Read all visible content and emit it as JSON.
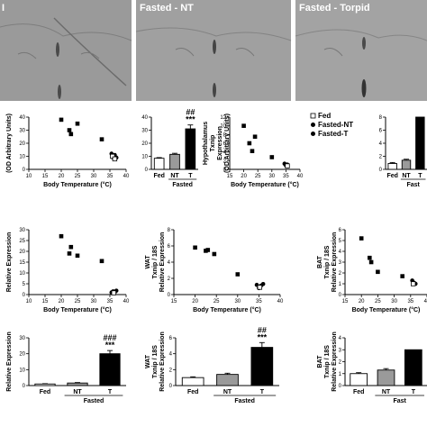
{
  "panel_headers": [
    "I",
    "Fasted - NT",
    "Fasted - Torpid"
  ],
  "legend": [
    {
      "label": "Fed",
      "marker": "open-square"
    },
    {
      "label": "Fasted-NT",
      "marker": "filled-circle"
    },
    {
      "label": "Fasted-T",
      "marker": "filled-circle"
    }
  ],
  "colors": {
    "fed": "#ffffff",
    "fasted_nt": "#9a9a9a",
    "fasted_t": "#000000",
    "micrograph_bg": "#9c9c9c"
  },
  "chart_data": [
    {
      "id": "r1c1",
      "type": "scatter",
      "ylabel": "(OD Arbitrary Units)",
      "xlabel": "Body Temperature (°C)",
      "xlim": [
        10,
        40
      ],
      "xticks": [
        10,
        15,
        20,
        25,
        30,
        35,
        40
      ],
      "ylim": [
        0,
        40
      ],
      "yticks": [
        0,
        10,
        20,
        30,
        40
      ],
      "points": [
        {
          "x": 20,
          "y": 38,
          "m": "s"
        },
        {
          "x": 22.5,
          "y": 30,
          "m": "s"
        },
        {
          "x": 23,
          "y": 27,
          "m": "s"
        },
        {
          "x": 25,
          "y": 35,
          "m": "s"
        },
        {
          "x": 32.5,
          "y": 23,
          "m": "s"
        },
        {
          "x": 35.5,
          "y": 12,
          "m": "c"
        },
        {
          "x": 36,
          "y": 9,
          "m": "c"
        },
        {
          "x": 36.5,
          "y": 11,
          "m": "c"
        },
        {
          "x": 37,
          "y": 9,
          "m": "c"
        },
        {
          "x": 35.8,
          "y": 10,
          "m": "o"
        },
        {
          "x": 36.5,
          "y": 8,
          "m": "o"
        }
      ]
    },
    {
      "id": "r1c2",
      "type": "bar",
      "categories": [
        "Fed",
        "NT",
        "T"
      ],
      "group_label": "Fasted",
      "values": [
        8.5,
        11.5,
        31
      ],
      "errors": [
        0.5,
        0.8,
        3
      ],
      "ylim": [
        0,
        40
      ],
      "yticks": [
        0,
        10,
        20,
        30,
        40
      ],
      "annotation": {
        "top": "##",
        "bottom": "***"
      }
    },
    {
      "id": "r1c3",
      "type": "scatter",
      "ylabel": [
        "Hypothalamus",
        "Txnip",
        "Expression",
        "(OD Arbitrary Units)"
      ],
      "xlabel": "Body Temperature (°C)",
      "xlim": [
        15,
        40
      ],
      "xticks": [
        15,
        20,
        25,
        30,
        35,
        40
      ],
      "ylim": [
        0,
        12
      ],
      "yticks": [
        0,
        2,
        4,
        6,
        8,
        10,
        12
      ],
      "points": [
        {
          "x": 20,
          "y": 10,
          "m": "s"
        },
        {
          "x": 22,
          "y": 6,
          "m": "s"
        },
        {
          "x": 23,
          "y": 4.2,
          "m": "s"
        },
        {
          "x": 24,
          "y": 7.5,
          "m": "s"
        },
        {
          "x": 30,
          "y": 2.8,
          "m": "s"
        },
        {
          "x": 34.5,
          "y": 1.3,
          "m": "c"
        },
        {
          "x": 35,
          "y": 0.9,
          "m": "c"
        },
        {
          "x": 35.5,
          "y": 1.1,
          "m": "c"
        },
        {
          "x": 35.5,
          "y": 0.8,
          "m": "o"
        }
      ]
    },
    {
      "id": "r1c4",
      "type": "bar",
      "categories": [
        "Fed",
        "NT",
        "T"
      ],
      "group_label": "Fast",
      "values": [
        0.9,
        1.4,
        null
      ],
      "errors": [
        0.15,
        0.15,
        null
      ],
      "ylim": [
        0,
        8
      ],
      "yticks": [
        0,
        2,
        4,
        6,
        8
      ],
      "clipped": true
    },
    {
      "id": "r2c1",
      "type": "scatter",
      "ylabel": "Relative Expression",
      "xlabel": "Body Temperature (°C)",
      "xlim": [
        10,
        40
      ],
      "xticks": [
        10,
        15,
        20,
        25,
        30,
        35,
        40
      ],
      "ylim": [
        0,
        30
      ],
      "yticks": [
        0,
        5,
        10,
        15,
        20,
        25,
        30
      ],
      "points": [
        {
          "x": 20,
          "y": 27,
          "m": "s"
        },
        {
          "x": 22.5,
          "y": 19,
          "m": "s"
        },
        {
          "x": 23,
          "y": 22,
          "m": "s"
        },
        {
          "x": 25,
          "y": 18,
          "m": "s"
        },
        {
          "x": 32.5,
          "y": 15.5,
          "m": "s"
        },
        {
          "x": 35.5,
          "y": 1,
          "m": "c"
        },
        {
          "x": 36,
          "y": 1.5,
          "m": "c"
        },
        {
          "x": 36.5,
          "y": 1,
          "m": "c"
        },
        {
          "x": 37,
          "y": 1.8,
          "m": "c"
        },
        {
          "x": 36.2,
          "y": 0.8,
          "m": "o"
        }
      ]
    },
    {
      "id": "r2c2",
      "type": "scatter",
      "ylabel": [
        "WAT",
        "Txnip / 18S",
        "Relative Expression"
      ],
      "xlabel": "Body Temperature (°C)",
      "xlim": [
        15,
        40
      ],
      "xticks": [
        15,
        20,
        25,
        30,
        35,
        40
      ],
      "ylim": [
        0,
        8
      ],
      "yticks": [
        0,
        2,
        4,
        6,
        8
      ],
      "points": [
        {
          "x": 20,
          "y": 5.8,
          "m": "s"
        },
        {
          "x": 22.5,
          "y": 5.4,
          "m": "s"
        },
        {
          "x": 23,
          "y": 5.5,
          "m": "s"
        },
        {
          "x": 24.5,
          "y": 5,
          "m": "s"
        },
        {
          "x": 30,
          "y": 2.5,
          "m": "s"
        },
        {
          "x": 34.5,
          "y": 1.2,
          "m": "c"
        },
        {
          "x": 35,
          "y": 0.8,
          "m": "c"
        },
        {
          "x": 35.5,
          "y": 1.1,
          "m": "c"
        },
        {
          "x": 36,
          "y": 1.3,
          "m": "c"
        },
        {
          "x": 35.2,
          "y": 0.9,
          "m": "o"
        }
      ]
    },
    {
      "id": "r2c3",
      "type": "scatter",
      "ylabel": [
        "BAT",
        "Txnip / 18S",
        "Relative Expression"
      ],
      "xlabel": "Body Temperature (°C)",
      "xlim": [
        15,
        40
      ],
      "xticks": [
        15,
        20,
        25,
        30,
        35,
        40
      ],
      "ylim": [
        0,
        6
      ],
      "yticks": [
        0,
        1,
        2,
        3,
        4,
        5,
        6
      ],
      "points": [
        {
          "x": 20,
          "y": 5.2,
          "m": "s"
        },
        {
          "x": 22.5,
          "y": 3.4,
          "m": "s"
        },
        {
          "x": 23,
          "y": 3.0,
          "m": "s"
        },
        {
          "x": 25,
          "y": 2.1,
          "m": "s"
        },
        {
          "x": 32.5,
          "y": 1.7,
          "m": "s"
        },
        {
          "x": 35.5,
          "y": 1.3,
          "m": "c"
        },
        {
          "x": 36,
          "y": 1.1,
          "m": "c"
        },
        {
          "x": 36.5,
          "y": 1.0,
          "m": "c"
        },
        {
          "x": 35.8,
          "y": 1.0,
          "m": "o"
        }
      ]
    },
    {
      "id": "r3c1",
      "type": "bar",
      "ylabel": "Relative Expression",
      "categories": [
        "Fed",
        "NT",
        "T"
      ],
      "group_label": "Fasted",
      "values": [
        1.0,
        1.6,
        20
      ],
      "errors": [
        0.2,
        0.3,
        2
      ],
      "ylim": [
        0,
        30
      ],
      "yticks": [
        0,
        10,
        20,
        30
      ],
      "annotation": {
        "top": "###",
        "bottom": "***"
      }
    },
    {
      "id": "r3c2",
      "type": "bar",
      "ylabel": [
        "WAT",
        "Txnip / 18S",
        "Relative Expression"
      ],
      "categories": [
        "Fed",
        "NT",
        "T"
      ],
      "group_label": "Fasted",
      "values": [
        1.0,
        1.4,
        4.8
      ],
      "errors": [
        0.1,
        0.15,
        0.6
      ],
      "ylim": [
        0,
        6
      ],
      "yticks": [
        0,
        2,
        4,
        6
      ],
      "annotation": {
        "top": "##",
        "bottom": "***"
      }
    },
    {
      "id": "r3c3",
      "type": "bar",
      "ylabel": [
        "BAT",
        "Txnip / 18S",
        "Relative Expression"
      ],
      "categories": [
        "Fed",
        "NT",
        "T"
      ],
      "group_label": "Fast",
      "values": [
        1.0,
        1.3,
        3.0
      ],
      "errors": [
        0.08,
        0.12,
        null
      ],
      "ylim": [
        0,
        4
      ],
      "yticks": [
        0,
        1,
        2,
        3,
        4
      ],
      "clipped": true
    }
  ]
}
